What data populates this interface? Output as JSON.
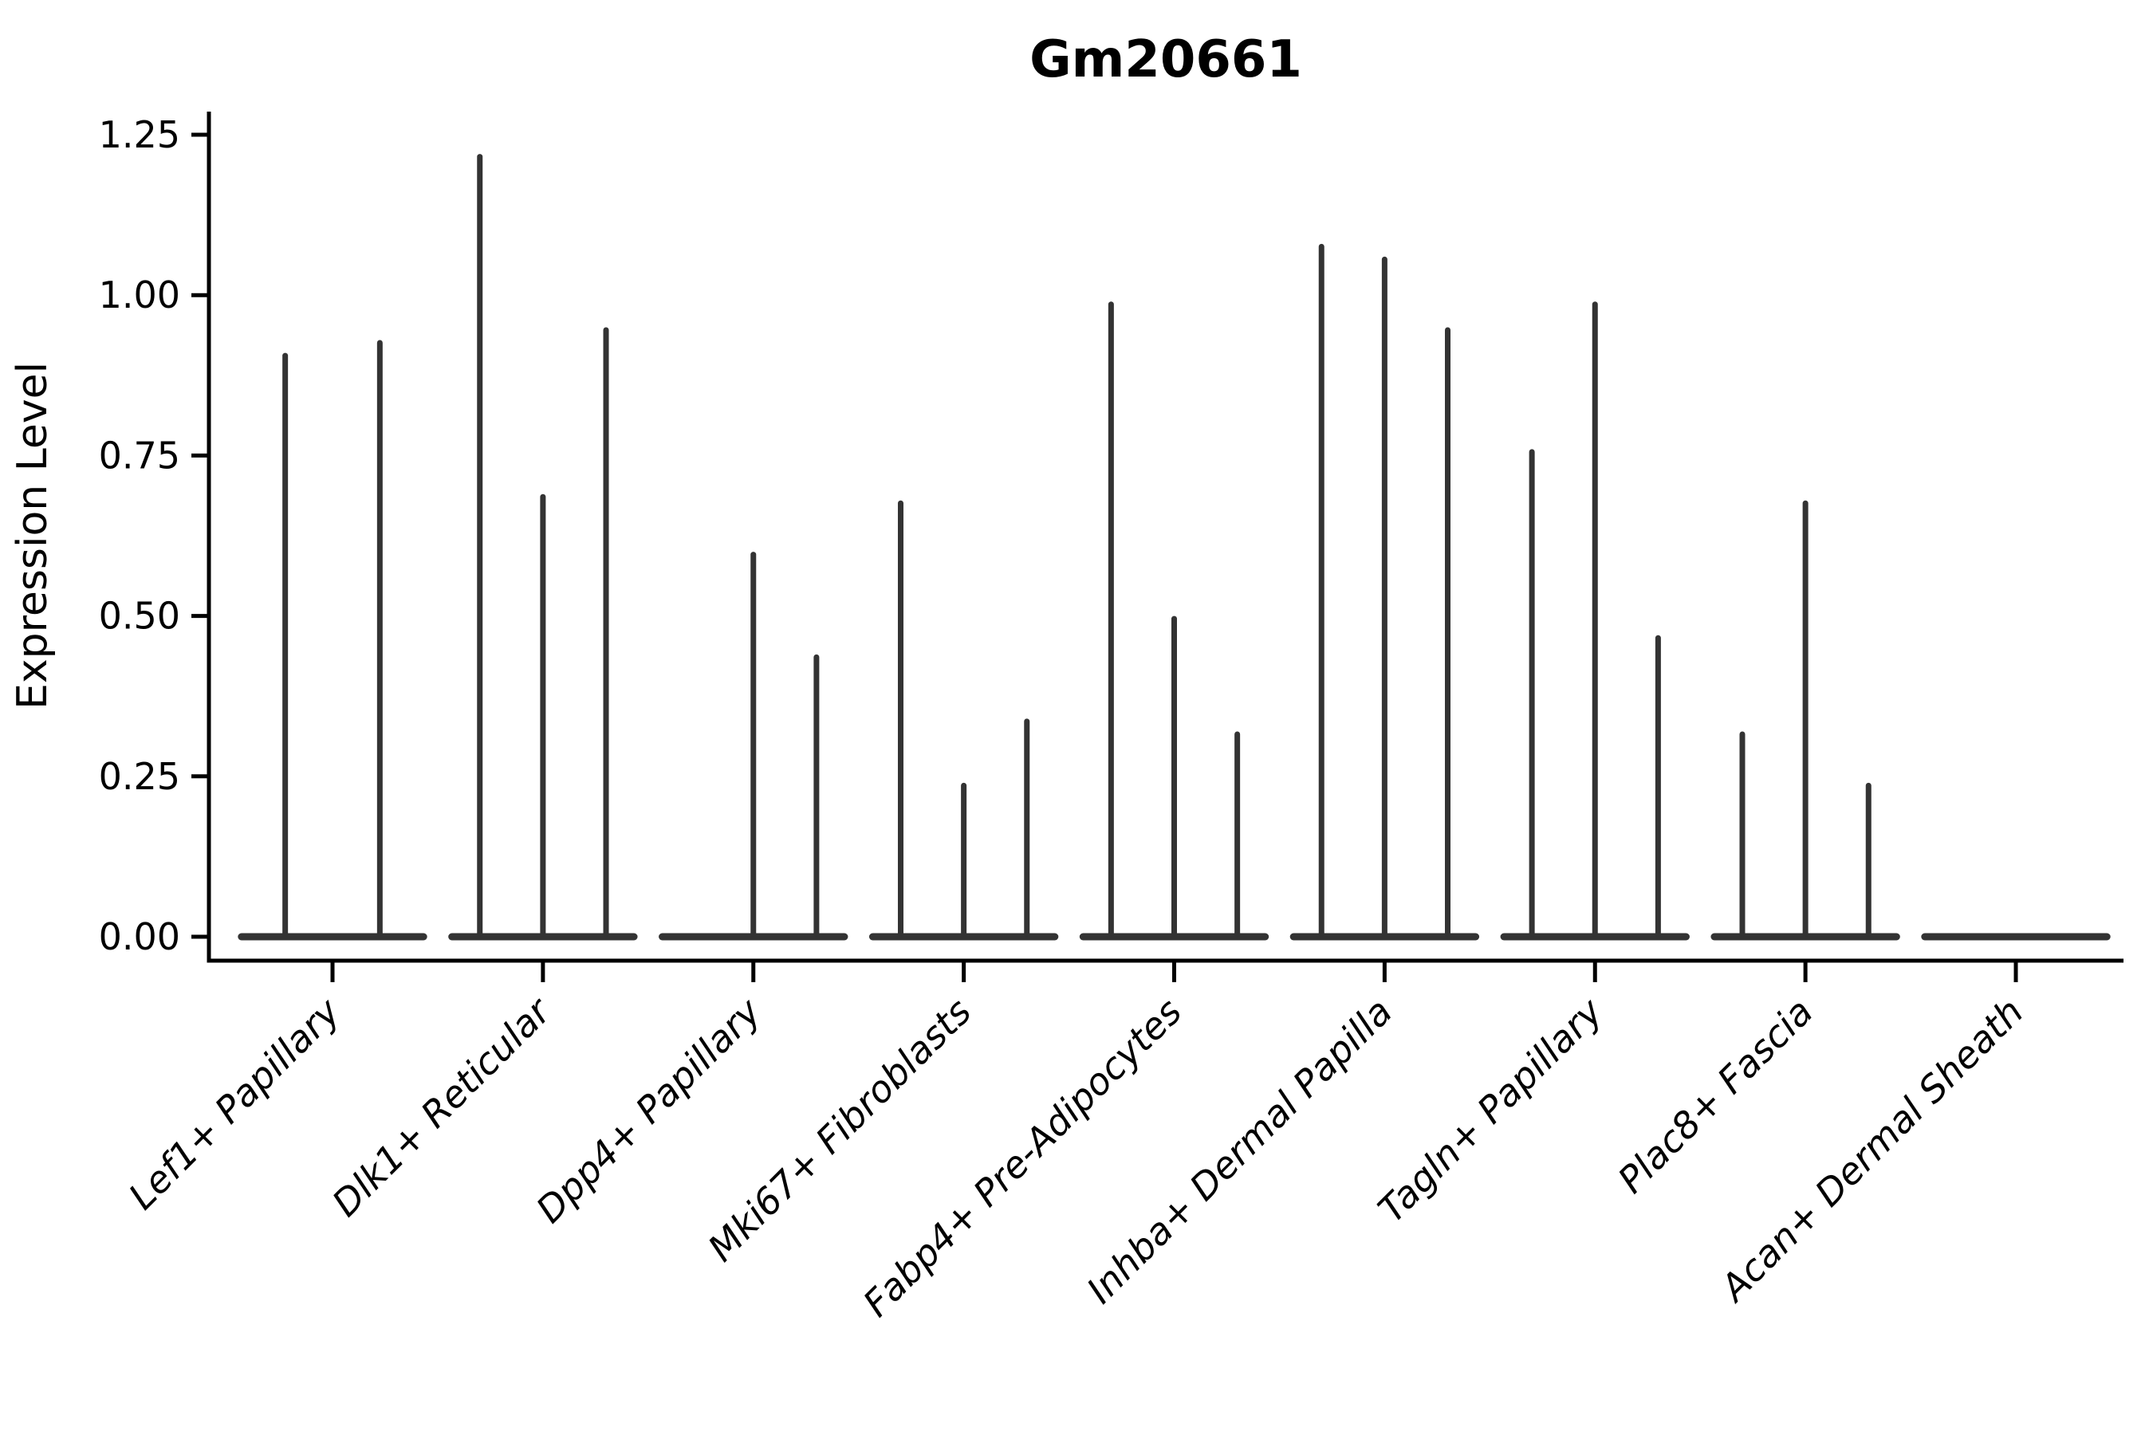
{
  "chart_data": {
    "type": "violin",
    "title": "Gm20661",
    "ylabel": "Expression Level",
    "xlabel": "",
    "ylim": [
      -0.037,
      1.288
    ],
    "yticks": {
      "values": [
        0,
        0.25,
        0.5,
        0.75,
        1.0,
        1.25
      ],
      "labels": [
        "0.00",
        "0.25",
        "0.50",
        "0.75",
        "1.00",
        "1.25"
      ]
    },
    "grid": false,
    "legend": null,
    "note": "Each category shows 2-3 very narrow violins: a wide flat base at expression 0 with a thin spike rising to the maximum expression value. Flat entries (max 0) have no spike.",
    "categories": [
      "Lef1+ Papillary",
      "Dlk1+ Reticular",
      "Dpp4+ Papillary",
      "Mki67+ Fibroblasts",
      "Fabp4+ Pre-Adipocytes",
      "Inhba+ Dermal Papilla",
      "Tagln+ Papillary",
      "Plac8+ Fascia",
      "Acan+ Dermal Sheath"
    ],
    "violins": [
      {
        "category": "Lef1+ Papillary",
        "spike_maxima": [
          0.91,
          0.93
        ]
      },
      {
        "category": "Dlk1+ Reticular",
        "spike_maxima": [
          1.22,
          0.69,
          0.95
        ]
      },
      {
        "category": "Dpp4+ Papillary",
        "spike_maxima": [
          0,
          0.6,
          0.44
        ]
      },
      {
        "category": "Mki67+ Fibroblasts",
        "spike_maxima": [
          0.68,
          0.24,
          0.34
        ]
      },
      {
        "category": "Fabp4+ Pre-Adipocytes",
        "spike_maxima": [
          0.99,
          0.5,
          0.32
        ]
      },
      {
        "category": "Inhba+ Dermal Papilla",
        "spike_maxima": [
          1.08,
          1.06,
          0.95
        ]
      },
      {
        "category": "Tagln+ Papillary",
        "spike_maxima": [
          0.76,
          0.99,
          0.47
        ]
      },
      {
        "category": "Plac8+ Fascia",
        "spike_maxima": [
          0.32,
          0.68,
          0.24
        ]
      },
      {
        "category": "Acan+ Dermal Sheath",
        "spike_maxima": [
          0,
          0,
          0
        ]
      }
    ],
    "colors": {
      "violin": "#333333",
      "axis": "#000000",
      "text": "#000000",
      "background": "#ffffff"
    }
  }
}
